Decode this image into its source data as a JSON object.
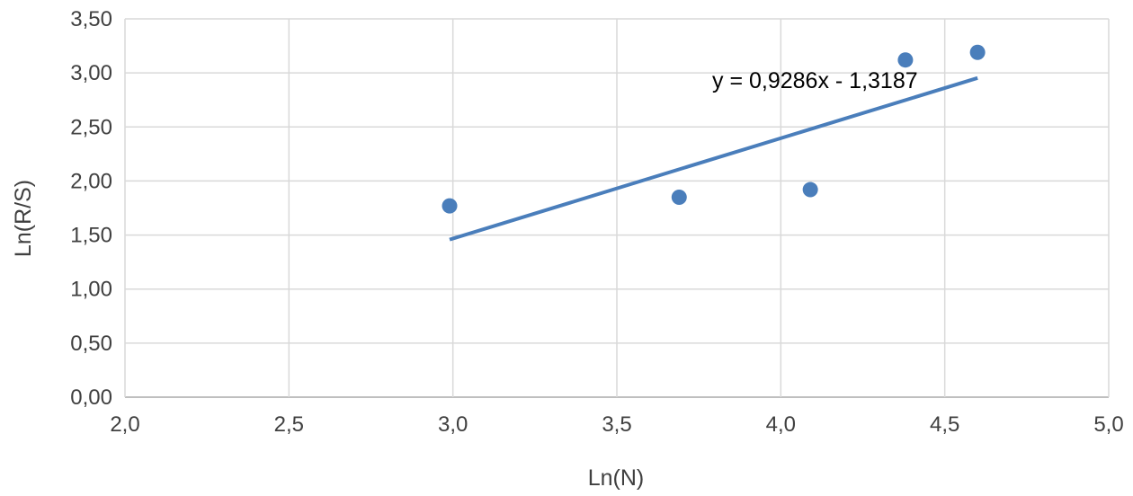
{
  "chart_data": {
    "type": "scatter",
    "title": "",
    "xlabel": "Ln(N)",
    "ylabel": "Ln(R/S)",
    "xlim": [
      2.0,
      5.0
    ],
    "ylim": [
      0.0,
      3.5
    ],
    "x_ticks": [
      "2,0",
      "2,5",
      "3,0",
      "3,5",
      "4,0",
      "4,5",
      "5,0"
    ],
    "y_ticks": [
      "0,00",
      "0,50",
      "1,00",
      "1,50",
      "2,00",
      "2,50",
      "3,00",
      "3,50"
    ],
    "grid": true,
    "series": [
      {
        "points": [
          {
            "x": 2.99,
            "y": 1.77
          },
          {
            "x": 3.69,
            "y": 1.85
          },
          {
            "x": 4.09,
            "y": 1.92
          },
          {
            "x": 4.38,
            "y": 3.12
          },
          {
            "x": 4.6,
            "y": 3.19
          }
        ]
      }
    ],
    "trendline": {
      "slope": 0.9286,
      "intercept": -1.3187,
      "x_range": [
        2.99,
        4.6
      ],
      "equation_label": "y = 0,9286x - 1,3187"
    },
    "colors": {
      "points": "#4a7ebb",
      "trendline": "#4a7ebb",
      "grid": "#d9d9d9",
      "axis": "#bfbfbf"
    }
  }
}
